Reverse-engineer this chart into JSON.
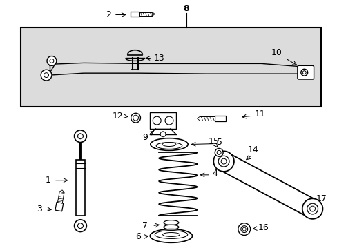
{
  "bg_color": "#ffffff",
  "diagram_bg": "#dcdcdc",
  "line_color": "#000000",
  "figsize": [
    4.89,
    3.6
  ],
  "dpi": 100
}
